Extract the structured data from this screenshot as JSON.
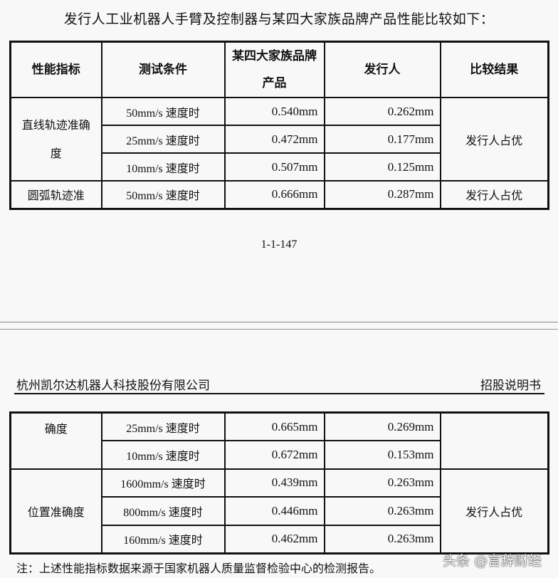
{
  "intro": "发行人工业机器人手臂及控制器与某四大家族品牌产品性能比较如下：",
  "table1": {
    "headers": [
      "性能指标",
      "测试条件",
      "某四大家族品牌产品",
      "发行人",
      "比较结果"
    ],
    "groups": [
      {
        "metric": "直线轨迹准确度",
        "result": "发行人占优",
        "rows": [
          {
            "cond": "50mm/s 速度时",
            "brand": "0.540mm",
            "issuer": "0.262mm"
          },
          {
            "cond": "25mm/s 速度时",
            "brand": "0.472mm",
            "issuer": "0.177mm"
          },
          {
            "cond": "10mm/s 速度时",
            "brand": "0.507mm",
            "issuer": "0.125mm"
          }
        ]
      },
      {
        "metric": "圆弧轨迹准",
        "result": "发行人占优",
        "rows": [
          {
            "cond": "50mm/s 速度时",
            "brand": "0.666mm",
            "issuer": "0.287mm"
          }
        ]
      }
    ]
  },
  "page_number": "1-1-147",
  "page_header": {
    "company": "杭州凯尔达机器人科技股份有限公司",
    "doc": "招股说明书"
  },
  "table2": {
    "groups": [
      {
        "metric": "确度",
        "result": "",
        "rows": [
          {
            "cond": "25mm/s 速度时",
            "brand": "0.665mm",
            "issuer": "0.269mm"
          },
          {
            "cond": "10mm/s 速度时",
            "brand": "0.672mm",
            "issuer": "0.153mm"
          }
        ]
      },
      {
        "metric": "位置准确度",
        "result": "发行人占优",
        "rows": [
          {
            "cond": "1600mm/s 速度时",
            "brand": "0.439mm",
            "issuer": "0.263mm"
          },
          {
            "cond": "800mm/s 速度时",
            "brand": "0.446mm",
            "issuer": "0.263mm"
          },
          {
            "cond": "160mm/s 速度时",
            "brand": "0.462mm",
            "issuer": "0.263mm"
          }
        ]
      }
    ]
  },
  "note": "注：上述性能指标数据来源于国家机器人质量监督检验中心的检测报告。",
  "watermark": "头条 @言辞财经"
}
